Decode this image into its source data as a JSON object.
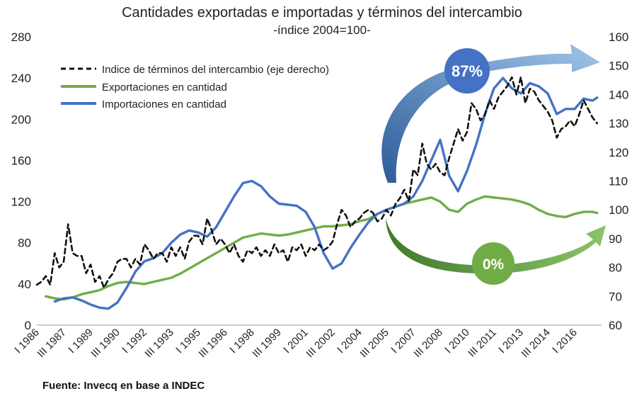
{
  "chart_data": {
    "type": "line",
    "title": "Cantidades exportadas e importadas y términos del intercambio",
    "subtitle": "-índice 2004=100-",
    "source": "Fuente: Invecq en base a INDEC",
    "y_left": {
      "lim": [
        0,
        280
      ],
      "ticks": [
        "0",
        "40",
        "80",
        "120",
        "160",
        "200",
        "240",
        "280"
      ]
    },
    "y_right": {
      "lim": [
        60,
        160
      ],
      "ticks": [
        "60",
        "70",
        "80",
        "90",
        "100",
        "110",
        "120",
        "130",
        "140",
        "150",
        "160"
      ]
    },
    "grid": false,
    "legend_position": "top-left",
    "x_ticks": [
      "I 1986",
      "III 1987",
      "I 1989",
      "III 1990",
      "I 1992",
      "III 1993",
      "I 1995",
      "III 1996",
      "I 1998",
      "III 1999",
      "I 2001",
      "III 2002",
      "I 2004",
      "III 2005",
      "I 2007",
      "III 2008",
      "I 2010",
      "III 2011",
      "I 2013",
      "III 2014",
      "I 2016"
    ],
    "x_ticks_t": [
      1986.0,
      1987.5,
      1989.0,
      1990.5,
      1992.0,
      1993.5,
      1995.0,
      1996.5,
      1998.0,
      1999.5,
      2001.0,
      2002.5,
      2004.0,
      2005.5,
      2007.0,
      2008.5,
      2010.0,
      2011.5,
      2013.0,
      2014.5,
      2016.0
    ],
    "x_range": [
      1986.0,
      2017.5
    ],
    "series": [
      {
        "name": "Indice de términos del intercambio (eje derecho)",
        "axis": "right",
        "color": "#111111",
        "dash": true,
        "x": [
          1986.0,
          1986.25,
          1986.5,
          1986.75,
          1987.0,
          1987.25,
          1987.5,
          1987.75,
          1988.0,
          1988.25,
          1988.5,
          1988.75,
          1989.0,
          1989.25,
          1989.5,
          1989.75,
          1990.0,
          1990.25,
          1990.5,
          1990.75,
          1991.0,
          1991.25,
          1991.5,
          1991.75,
          1992.0,
          1992.25,
          1992.5,
          1992.75,
          1993.0,
          1993.25,
          1993.5,
          1993.75,
          1994.0,
          1994.25,
          1994.5,
          1994.75,
          1995.0,
          1995.25,
          1995.5,
          1995.75,
          1996.0,
          1996.25,
          1996.5,
          1996.75,
          1997.0,
          1997.25,
          1997.5,
          1997.75,
          1998.0,
          1998.25,
          1998.5,
          1998.75,
          1999.0,
          1999.25,
          1999.5,
          1999.75,
          2000.0,
          2000.25,
          2000.5,
          2000.75,
          2001.0,
          2001.25,
          2001.5,
          2001.75,
          2002.0,
          2002.25,
          2002.5,
          2002.75,
          2003.0,
          2003.25,
          2003.5,
          2003.75,
          2004.0,
          2004.25,
          2004.5,
          2004.75,
          2005.0,
          2005.25,
          2005.5,
          2005.75,
          2006.0,
          2006.25,
          2006.5,
          2006.75,
          2007.0,
          2007.25,
          2007.5,
          2007.75,
          2008.0,
          2008.25,
          2008.5,
          2008.75,
          2009.0,
          2009.25,
          2009.5,
          2009.75,
          2010.0,
          2010.25,
          2010.5,
          2010.75,
          2011.0,
          2011.25,
          2011.5,
          2011.75,
          2012.0,
          2012.25,
          2012.5,
          2012.75,
          2013.0,
          2013.25,
          2013.5,
          2013.75,
          2014.0,
          2014.25,
          2014.5,
          2014.75,
          2015.0,
          2015.25,
          2015.5,
          2015.75,
          2016.0,
          2016.25,
          2016.5,
          2016.75,
          2017.0,
          2017.25
        ],
        "values": [
          74,
          75,
          77,
          74,
          85,
          80,
          82,
          95,
          85,
          84,
          84,
          78,
          81,
          75,
          77,
          73,
          76,
          78,
          82,
          83,
          83,
          80,
          83,
          81,
          88,
          86,
          83,
          85,
          85,
          82,
          87,
          84,
          87,
          83,
          89,
          91,
          91,
          88,
          97,
          93,
          88,
          90,
          88,
          85,
          88,
          84,
          82,
          86,
          85,
          87,
          84,
          86,
          84,
          88,
          85,
          86,
          82,
          87,
          86,
          88,
          84,
          87,
          86,
          88,
          86,
          87,
          89,
          95,
          100,
          98,
          94,
          96,
          97,
          99,
          100,
          99,
          96,
          97,
          100,
          98,
          102,
          104,
          107,
          103,
          114,
          112,
          123,
          116,
          114,
          116,
          113,
          112,
          118,
          123,
          128,
          124,
          127,
          137,
          135,
          131,
          133,
          138,
          135,
          139,
          141,
          143,
          146,
          140,
          146,
          137,
          142,
          141,
          138,
          136,
          134,
          131,
          125,
          128,
          129,
          131,
          129,
          133,
          138,
          135,
          132,
          130
        ]
      },
      {
        "name": "Exportaciones en cantidad",
        "axis": "left",
        "color": "#70ad47",
        "x": [
          1986.5,
          1987.0,
          1987.5,
          1988.0,
          1988.5,
          1989.0,
          1989.5,
          1990.0,
          1990.5,
          1991.0,
          1991.5,
          1992.0,
          1992.5,
          1993.0,
          1993.5,
          1994.0,
          1994.5,
          1995.0,
          1995.5,
          1996.0,
          1996.5,
          1997.0,
          1997.5,
          1998.0,
          1998.5,
          1999.0,
          1999.5,
          2000.0,
          2000.5,
          2001.0,
          2001.5,
          2002.0,
          2002.5,
          2003.0,
          2003.5,
          2004.0,
          2004.5,
          2005.0,
          2005.5,
          2006.0,
          2006.5,
          2007.0,
          2007.5,
          2008.0,
          2008.5,
          2009.0,
          2009.5,
          2010.0,
          2010.5,
          2011.0,
          2011.5,
          2012.0,
          2012.5,
          2013.0,
          2013.5,
          2014.0,
          2014.5,
          2015.0,
          2015.5,
          2016.0,
          2016.5,
          2017.0,
          2017.25
        ],
        "values": [
          28,
          26,
          25,
          27,
          30,
          32,
          34,
          38,
          41,
          42,
          41,
          40,
          42,
          44,
          46,
          50,
          55,
          60,
          65,
          70,
          75,
          80,
          85,
          87,
          89,
          88,
          87,
          88,
          90,
          92,
          94,
          96,
          96,
          97,
          98,
          101,
          103,
          108,
          112,
          115,
          118,
          120,
          122,
          124,
          120,
          112,
          110,
          118,
          122,
          125,
          124,
          123,
          122,
          120,
          117,
          112,
          108,
          106,
          105,
          108,
          110,
          110,
          109
        ]
      },
      {
        "name": "Importaciones en cantidad",
        "axis": "left",
        "color": "#4472c4",
        "x": [
          1987.0,
          1987.5,
          1988.0,
          1988.5,
          1989.0,
          1989.5,
          1990.0,
          1990.5,
          1991.0,
          1991.5,
          1992.0,
          1992.5,
          1993.0,
          1993.5,
          1994.0,
          1994.5,
          1995.0,
          1995.5,
          1996.0,
          1996.5,
          1997.0,
          1997.5,
          1998.0,
          1998.5,
          1999.0,
          1999.5,
          2000.0,
          2000.5,
          2001.0,
          2001.5,
          2002.0,
          2002.5,
          2003.0,
          2003.5,
          2004.0,
          2004.5,
          2005.0,
          2005.5,
          2006.0,
          2006.5,
          2007.0,
          2007.5,
          2008.0,
          2008.5,
          2009.0,
          2009.5,
          2010.0,
          2010.5,
          2011.0,
          2011.5,
          2012.0,
          2012.5,
          2013.0,
          2013.5,
          2014.0,
          2014.5,
          2015.0,
          2015.5,
          2016.0,
          2016.5,
          2017.0,
          2017.25
        ],
        "values": [
          23,
          26,
          27,
          24,
          20,
          17,
          16,
          22,
          36,
          52,
          62,
          65,
          70,
          80,
          88,
          92,
          90,
          86,
          95,
          110,
          125,
          138,
          140,
          135,
          125,
          118,
          117,
          116,
          110,
          95,
          70,
          55,
          60,
          75,
          88,
          100,
          108,
          112,
          115,
          118,
          125,
          140,
          160,
          180,
          145,
          130,
          150,
          175,
          205,
          230,
          240,
          230,
          225,
          235,
          232,
          225,
          205,
          210,
          210,
          220,
          218,
          221
        ]
      }
    ],
    "annotations": [
      {
        "text": "87%",
        "color": "#4472c4"
      },
      {
        "text": "0%",
        "color": "#70ad47"
      }
    ]
  }
}
